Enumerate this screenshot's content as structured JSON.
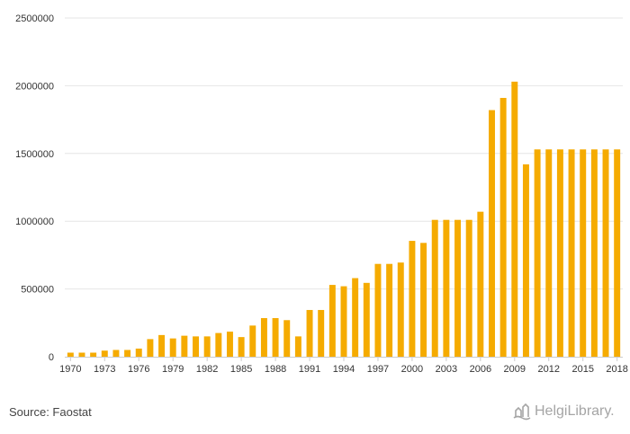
{
  "footer": {
    "source": "Source: Faostat",
    "brand": "HelgiLibrary."
  },
  "chart_data": {
    "type": "bar",
    "color": "#f5ab00",
    "grid_color": "#e6e6e6",
    "grid": true,
    "legend": "none",
    "ylim": [
      0,
      2500000
    ],
    "y_ticks": [
      "0",
      "500000",
      "1000000",
      "1500000",
      "2000000",
      "2500000"
    ],
    "y_tick_values": [
      0,
      500000,
      1000000,
      1500000,
      2000000,
      2500000
    ],
    "categories": [
      "1970",
      "1971",
      "1972",
      "1973",
      "1974",
      "1975",
      "1976",
      "1977",
      "1978",
      "1979",
      "1980",
      "1981",
      "1982",
      "1983",
      "1984",
      "1985",
      "1986",
      "1987",
      "1988",
      "1989",
      "1990",
      "1991",
      "1992",
      "1993",
      "1994",
      "1995",
      "1996",
      "1997",
      "1998",
      "1999",
      "2000",
      "2001",
      "2002",
      "2003",
      "2004",
      "2005",
      "2006",
      "2007",
      "2008",
      "2009",
      "2010",
      "2011",
      "2012",
      "2013",
      "2014",
      "2015",
      "2016",
      "2017",
      "2018"
    ],
    "x_tick_labels": [
      "1970",
      "1973",
      "1976",
      "1979",
      "1982",
      "1985",
      "1988",
      "1991",
      "1994",
      "1997",
      "2000",
      "2003",
      "2006",
      "2009",
      "2012",
      "2015",
      "2018"
    ],
    "values": [
      30000,
      30000,
      30000,
      45000,
      50000,
      50000,
      60000,
      130000,
      160000,
      135000,
      155000,
      150000,
      150000,
      175000,
      185000,
      145000,
      230000,
      285000,
      285000,
      270000,
      150000,
      345000,
      345000,
      530000,
      520000,
      580000,
      545000,
      685000,
      685000,
      695000,
      855000,
      840000,
      1010000,
      1010000,
      1010000,
      1010000,
      1070000,
      1820000,
      1910000,
      2030000,
      1420000,
      1530000,
      1530000,
      1530000,
      1530000,
      1530000,
      1530000,
      1530000,
      1530000
    ]
  }
}
